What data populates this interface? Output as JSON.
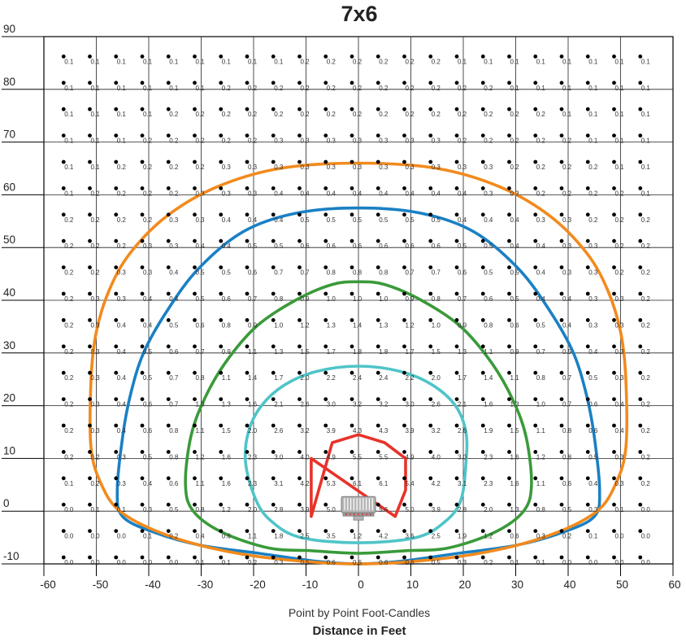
{
  "chart_data": {
    "type": "heatmap",
    "title": "7x6",
    "subtitle": "Point by Point Foot-Candles",
    "xlabel": "Distance in Feet",
    "ylabel": "",
    "xlim": [
      -60,
      60
    ],
    "ylim": [
      -10,
      90
    ],
    "xticks": [
      -60,
      -50,
      -40,
      -30,
      -20,
      -10,
      0,
      10,
      20,
      30,
      40,
      50,
      60
    ],
    "yticks": [
      -10,
      0,
      10,
      20,
      30,
      40,
      50,
      60,
      70,
      80,
      90
    ],
    "xtick_labels": [
      "-60",
      "-50",
      "-40",
      "-30",
      "-20",
      "-10",
      "0",
      "10",
      "20",
      "30",
      "40",
      "50",
      "60"
    ],
    "ytick_labels": [
      "-10",
      "0",
      "10",
      "20",
      "30",
      "40",
      "50",
      "60",
      "70",
      "80",
      "90"
    ],
    "grid": true,
    "x": [
      -55,
      -50,
      -45,
      -40,
      -35,
      -30,
      -25,
      -20,
      -15,
      -10,
      -5,
      0,
      5,
      10,
      15,
      20,
      25,
      30,
      35,
      40,
      45,
      50,
      55
    ],
    "y": [
      85,
      80,
      75,
      70,
      65,
      60,
      55,
      50,
      45,
      40,
      35,
      30,
      25,
      20,
      15,
      10,
      5,
      0,
      -5,
      -10
    ],
    "values": [
      [
        "0.1",
        "0.1",
        "0.1",
        "0.1",
        "0.1",
        "0.1",
        "0.1",
        "0.1",
        "0.1",
        "0.2",
        "0.2",
        "0.2",
        "0.2",
        "0.2",
        "0.2",
        "0.1",
        "0.1",
        "0.1",
        "0.1",
        "0.1",
        "0.1",
        "0.1",
        "0.1"
      ],
      [
        "0.1",
        "0.1",
        "0.1",
        "0.1",
        "0.1",
        "0.1",
        "0.2",
        "0.2",
        "0.2",
        "0.2",
        "0.2",
        "0.2",
        "0.2",
        "0.2",
        "0.2",
        "0.2",
        "0.2",
        "0.1",
        "0.1",
        "0.1",
        "0.1",
        "0.1",
        "0.1"
      ],
      [
        "0.1",
        "0.1",
        "0.1",
        "0.1",
        "0.2",
        "0.2",
        "0.2",
        "0.2",
        "0.2",
        "0.2",
        "0.2",
        "0.2",
        "0.2",
        "0.2",
        "0.2",
        "0.2",
        "0.2",
        "0.2",
        "0.2",
        "0.1",
        "0.1",
        "0.1",
        "0.1"
      ],
      [
        "0.1",
        "0.1",
        "0.1",
        "0.2",
        "0.2",
        "0.2",
        "0.2",
        "0.2",
        "0.3",
        "0.3",
        "0.3",
        "0.3",
        "0.3",
        "0.3",
        "0.3",
        "0.2",
        "0.2",
        "0.2",
        "0.2",
        "0.2",
        "0.1",
        "0.1",
        "0.1"
      ],
      [
        "0.1",
        "0.1",
        "0.2",
        "0.2",
        "0.2",
        "0.2",
        "0.3",
        "0.3",
        "0.3",
        "0.3",
        "0.3",
        "0.3",
        "0.3",
        "0.3",
        "0.3",
        "0.3",
        "0.3",
        "0.2",
        "0.2",
        "0.2",
        "0.2",
        "0.1",
        "0.1"
      ],
      [
        "0.1",
        "0.2",
        "0.2",
        "0.2",
        "0.2",
        "0.3",
        "0.3",
        "0.3",
        "0.4",
        "0.4",
        "0.4",
        "0.4",
        "0.4",
        "0.4",
        "0.4",
        "0.4",
        "0.3",
        "0.3",
        "0.2",
        "0.2",
        "0.2",
        "0.2",
        "0.1"
      ],
      [
        "0.2",
        "0.2",
        "0.2",
        "0.2",
        "0.3",
        "0.3",
        "0.4",
        "0.4",
        "0.4",
        "0.5",
        "0.5",
        "0.5",
        "0.5",
        "0.5",
        "0.5",
        "0.4",
        "0.4",
        "0.4",
        "0.3",
        "0.3",
        "0.2",
        "0.2",
        "0.2"
      ],
      [
        "0.2",
        "0.2",
        "0.2",
        "0.3",
        "0.3",
        "0.4",
        "0.4",
        "0.5",
        "0.5",
        "0.6",
        "0.6",
        "0.6",
        "0.6",
        "0.6",
        "0.6",
        "0.5",
        "0.5",
        "0.4",
        "0.4",
        "0.3",
        "0.3",
        "0.2",
        "0.2"
      ],
      [
        "0.2",
        "0.2",
        "0.3",
        "0.3",
        "0.4",
        "0.5",
        "0.5",
        "0.6",
        "0.7",
        "0.7",
        "0.8",
        "0.8",
        "0.8",
        "0.7",
        "0.7",
        "0.6",
        "0.5",
        "0.5",
        "0.4",
        "0.3",
        "0.3",
        "0.2",
        "0.2"
      ],
      [
        "0.2",
        "0.3",
        "0.3",
        "0.4",
        "0.4",
        "0.5",
        "0.6",
        "0.7",
        "0.8",
        "0.9",
        "1.0",
        "1.0",
        "1.0",
        "0.9",
        "0.8",
        "0.7",
        "0.6",
        "0.5",
        "0.4",
        "0.4",
        "0.3",
        "0.3",
        "0.2"
      ],
      [
        "0.2",
        "0.3",
        "0.4",
        "0.4",
        "0.5",
        "0.6",
        "0.8",
        "0.9",
        "1.0",
        "1.2",
        "1.3",
        "1.4",
        "1.3",
        "1.2",
        "1.0",
        "0.9",
        "0.8",
        "0.6",
        "0.5",
        "0.4",
        "0.3",
        "0.3",
        "0.2"
      ],
      [
        "0.2",
        "0.3",
        "0.4",
        "0.5",
        "0.6",
        "0.7",
        "0.9",
        "1.1",
        "1.3",
        "1.5",
        "1.7",
        "1.8",
        "1.8",
        "1.7",
        "1.5",
        "1.3",
        "1.1",
        "0.9",
        "0.7",
        "0.5",
        "0.4",
        "0.3",
        "0.2"
      ],
      [
        "0.2",
        "0.3",
        "0.4",
        "0.5",
        "0.7",
        "0.8",
        "1.1",
        "1.4",
        "1.7",
        "2.0",
        "2.2",
        "2.4",
        "2.4",
        "2.2",
        "2.0",
        "1.7",
        "1.4",
        "1.1",
        "0.8",
        "0.7",
        "0.5",
        "0.3",
        "0.2"
      ],
      [
        "0.2",
        "0.3",
        "0.4",
        "0.6",
        "0.7",
        "1.0",
        "1.3",
        "1.6",
        "2.1",
        "2.6",
        "3.0",
        "3.2",
        "3.2",
        "3.0",
        "2.6",
        "2.1",
        "1.6",
        "1.3",
        "1.0",
        "0.7",
        "0.6",
        "0.4",
        "0.2"
      ],
      [
        "0.2",
        "0.3",
        "0.4",
        "0.6",
        "0.8",
        "1.1",
        "1.5",
        "2.0",
        "2.6",
        "3.2",
        "3.9",
        "4.3",
        "4.3",
        "3.9",
        "3.2",
        "2.6",
        "1.9",
        "1.5",
        "1.1",
        "0.8",
        "0.6",
        "0.4",
        "0.2"
      ],
      [
        "0.2",
        "0.2",
        "0.3",
        "0.5",
        "0.8",
        "1.2",
        "1.6",
        "2.3",
        "3.0",
        "4.0",
        "4.9",
        "5.5",
        "5.5",
        "4.9",
        "4.0",
        "3.0",
        "2.3",
        "1.6",
        "1.2",
        "0.8",
        "0.5",
        "0.3",
        "0.2"
      ],
      [
        "0.1",
        "0.2",
        "0.3",
        "0.4",
        "0.6",
        "1.1",
        "1.6",
        "2.3",
        "3.1",
        "4.2",
        "5.3",
        "6.1",
        "6.1",
        "5.4",
        "4.2",
        "3.1",
        "2.3",
        "1.6",
        "1.1",
        "0.6",
        "0.4",
        "0.3",
        "0.2"
      ],
      [
        "0.0",
        "0.1",
        "0.1",
        "0.3",
        "0.5",
        "0.8",
        "1.2",
        "2.0",
        "2.8",
        "3.9",
        "5.0",
        "5.6",
        "5.6",
        "5.0",
        "3.9",
        "2.8",
        "2.0",
        "1.3",
        "0.8",
        "0.5",
        "0.3",
        "0.1",
        "0.0"
      ],
      [
        "0.0",
        "0.0",
        "0.0",
        "0.1",
        "0.2",
        "0.4",
        "0.6",
        "1.1",
        "1.8",
        "2.5",
        "3.5",
        "1.2",
        "4.2",
        "3.6",
        "2.5",
        "1.9",
        "1.2",
        "0.6",
        "0.3",
        "0.2",
        "0.1",
        "0.0",
        "0.0"
      ],
      [
        "0.0",
        "0.0",
        "0.0",
        "0.0",
        "0.0",
        "0.1",
        "0.1",
        "0.2",
        "0.3",
        "0.5",
        "0.6",
        "0.6",
        "0.6",
        "0.6",
        "0.5",
        "0.3",
        "0.2",
        "0.1",
        "0.1",
        "0.0",
        "0.0",
        "0.0",
        "0.0"
      ]
    ],
    "contours": [
      {
        "level": "red",
        "color": "#e8322a",
        "points": [
          [
            -9,
            10
          ],
          [
            -9,
            -1
          ],
          [
            -5,
            13
          ],
          [
            0,
            14.5
          ],
          [
            5,
            13
          ],
          [
            9,
            10
          ],
          [
            9,
            4
          ],
          [
            7,
            -1
          ]
        ]
      },
      {
        "level": "cyan",
        "color": "#4fc4c8",
        "points": [
          [
            -21.5,
            9
          ],
          [
            -21,
            15
          ],
          [
            -18.5,
            20
          ],
          [
            -14,
            24
          ],
          [
            -8,
            26.5
          ],
          [
            0,
            27.5
          ],
          [
            8,
            26.5
          ],
          [
            14,
            24
          ],
          [
            18.5,
            20
          ],
          [
            20.5,
            15
          ],
          [
            20.5,
            9
          ],
          [
            19.5,
            2
          ],
          [
            16.5,
            -2
          ],
          [
            11,
            -5
          ],
          [
            0,
            -6
          ],
          [
            -11,
            -5
          ],
          [
            -16.5,
            -2
          ],
          [
            -19.5,
            2
          ]
        ]
      },
      {
        "level": "green",
        "color": "#3a9a3a",
        "points": [
          [
            -33,
            5
          ],
          [
            -32,
            14
          ],
          [
            -29.5,
            21
          ],
          [
            -25.5,
            28
          ],
          [
            -19.5,
            35
          ],
          [
            -12,
            40
          ],
          [
            -5,
            43
          ],
          [
            0,
            43.5
          ],
          [
            5,
            43
          ],
          [
            12,
            40
          ],
          [
            19.5,
            35
          ],
          [
            25.5,
            28
          ],
          [
            29.5,
            21
          ],
          [
            32,
            14
          ],
          [
            33,
            5
          ],
          [
            31.5,
            0
          ],
          [
            26,
            -4
          ],
          [
            17,
            -7
          ],
          [
            9,
            -7.5
          ],
          [
            0,
            -8
          ],
          [
            -9,
            -7.5
          ],
          [
            -17,
            -7
          ],
          [
            -26,
            -4
          ],
          [
            -31.5,
            0
          ]
        ]
      },
      {
        "level": "blue",
        "color": "#1a80c4",
        "points": [
          [
            -46,
            4
          ],
          [
            -45,
            14
          ],
          [
            -43.5,
            22
          ],
          [
            -41,
            30
          ],
          [
            -36.5,
            38
          ],
          [
            -30.5,
            46
          ],
          [
            -22,
            53
          ],
          [
            -12,
            56.5
          ],
          [
            0,
            57.5
          ],
          [
            12,
            56.5
          ],
          [
            22,
            53
          ],
          [
            30.5,
            46
          ],
          [
            36.5,
            38
          ],
          [
            41,
            30
          ],
          [
            43.5,
            22
          ],
          [
            45,
            14
          ],
          [
            46,
            4
          ],
          [
            45,
            -1
          ],
          [
            39,
            -4
          ],
          [
            30,
            -6.5
          ],
          [
            19,
            -8
          ],
          [
            8,
            -9.5
          ],
          [
            0,
            -10
          ],
          [
            -8,
            -9.5
          ],
          [
            -19,
            -8
          ],
          [
            -30,
            -6.5
          ],
          [
            -39,
            -4
          ],
          [
            -45,
            -1
          ]
        ]
      },
      {
        "level": "orange",
        "color": "#f28a1d",
        "points": [
          [
            -51,
            12
          ],
          [
            -51,
            25
          ],
          [
            -50,
            34
          ],
          [
            -47.5,
            42
          ],
          [
            -43.5,
            49
          ],
          [
            -36.5,
            56
          ],
          [
            -27,
            61.5
          ],
          [
            -15,
            65
          ],
          [
            0,
            66
          ],
          [
            15,
            65
          ],
          [
            27,
            61.5
          ],
          [
            36.5,
            56
          ],
          [
            43.5,
            49
          ],
          [
            47.5,
            42
          ],
          [
            50,
            34
          ],
          [
            51,
            25
          ],
          [
            51,
            12
          ],
          [
            49,
            5
          ],
          [
            45.5,
            0
          ],
          [
            38,
            -4
          ],
          [
            28,
            -7
          ],
          [
            16,
            -9
          ],
          [
            0,
            -10
          ],
          [
            -16,
            -9
          ],
          [
            -28,
            -7
          ],
          [
            -38,
            -4
          ],
          [
            -45.5,
            0
          ],
          [
            -49,
            5
          ]
        ]
      }
    ]
  }
}
